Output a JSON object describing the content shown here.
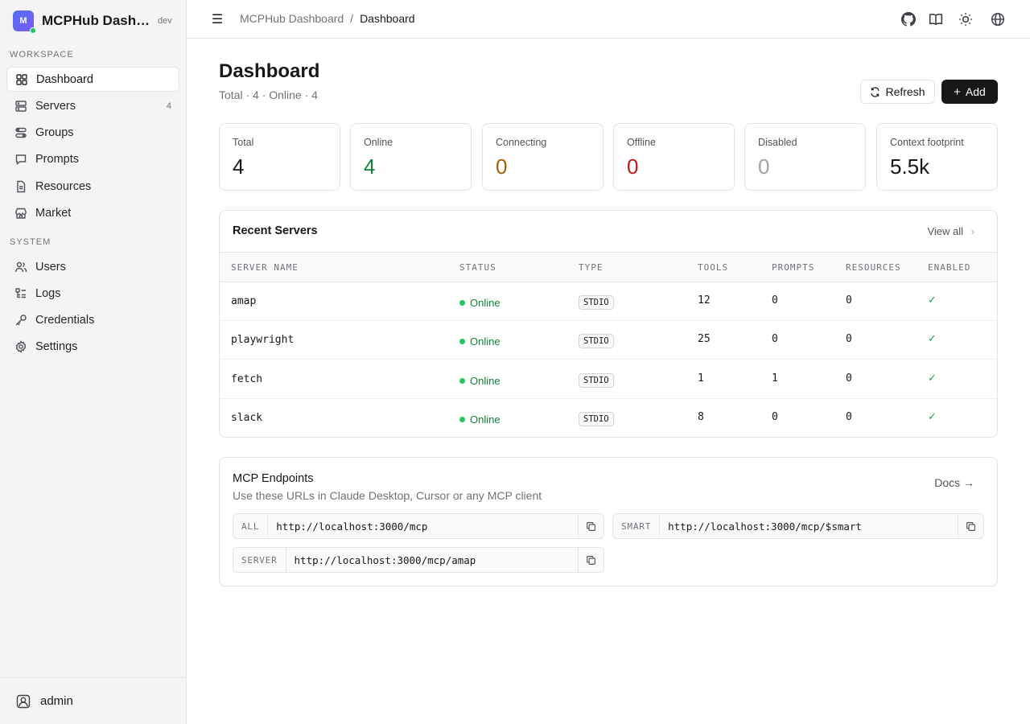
{
  "brand": {
    "initial": "M",
    "name": "MCPHub Dashboard",
    "tag": "dev"
  },
  "sidebar": {
    "workspace_label": "WORKSPACE",
    "system_label": "SYSTEM",
    "workspace_items": [
      {
        "label": "Dashboard",
        "icon": "grid-icon"
      },
      {
        "label": "Servers",
        "icon": "server-icon",
        "count": "4"
      },
      {
        "label": "Groups",
        "icon": "groups-icon"
      },
      {
        "label": "Prompts",
        "icon": "chat-icon"
      },
      {
        "label": "Resources",
        "icon": "file-icon"
      },
      {
        "label": "Market",
        "icon": "store-icon"
      }
    ],
    "system_items": [
      {
        "label": "Users",
        "icon": "users-icon"
      },
      {
        "label": "Logs",
        "icon": "logs-icon"
      },
      {
        "label": "Credentials",
        "icon": "key-icon"
      },
      {
        "label": "Settings",
        "icon": "gear-icon"
      }
    ],
    "user": "admin"
  },
  "header": {
    "crumb_root": "MCPHub Dashboard",
    "crumb_sep": "/",
    "crumb_current": "Dashboard"
  },
  "page": {
    "title": "Dashboard",
    "subtitle": "Total · 4 · Online · 4",
    "refresh_label": "Refresh",
    "add_label": "Add"
  },
  "stats": [
    {
      "label": "Total",
      "value": "4",
      "color": "#18181b"
    },
    {
      "label": "Online",
      "value": "4",
      "color": "#15803d"
    },
    {
      "label": "Connecting",
      "value": "0",
      "color": "#a16207"
    },
    {
      "label": "Offline",
      "value": "0",
      "color": "#b91c1c"
    },
    {
      "label": "Disabled",
      "value": "0",
      "color": "#a1a1aa"
    },
    {
      "label": "Context footprint",
      "value": "5.5k",
      "color": "#18181b"
    }
  ],
  "recent": {
    "title": "Recent Servers",
    "view_all": "View all",
    "columns": [
      "SERVER NAME",
      "STATUS",
      "TYPE",
      "TOOLS",
      "PROMPTS",
      "RESOURCES",
      "ENABLED"
    ],
    "rows": [
      {
        "name": "amap",
        "status": "Online",
        "type": "STDIO",
        "tools": "12",
        "prompts": "0",
        "resources": "0",
        "enabled": "✓"
      },
      {
        "name": "playwright",
        "status": "Online",
        "type": "STDIO",
        "tools": "25",
        "prompts": "0",
        "resources": "0",
        "enabled": "✓"
      },
      {
        "name": "fetch",
        "status": "Online",
        "type": "STDIO",
        "tools": "1",
        "prompts": "1",
        "resources": "0",
        "enabled": "✓"
      },
      {
        "name": "slack",
        "status": "Online",
        "type": "STDIO",
        "tools": "8",
        "prompts": "0",
        "resources": "0",
        "enabled": "✓"
      }
    ]
  },
  "endpoints": {
    "title": "MCP Endpoints",
    "subtitle": "Use these URLs in Claude Desktop, Cursor or any MCP client",
    "docs": "Docs →",
    "items": [
      {
        "key": "ALL",
        "url": "http://localhost:3000/mcp"
      },
      {
        "key": "SMART",
        "url": "http://localhost:3000/mcp/$smart"
      },
      {
        "key": "SERVER",
        "url": "http://localhost:3000/mcp/amap"
      }
    ]
  }
}
